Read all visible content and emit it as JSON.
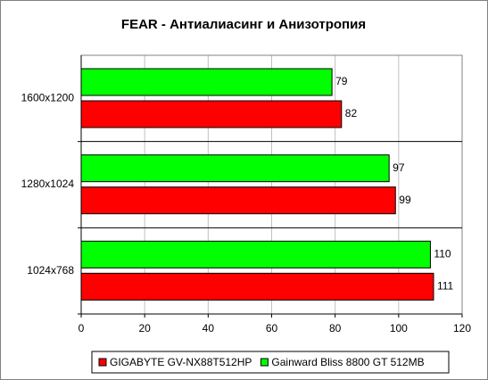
{
  "chart_data": {
    "type": "bar",
    "orientation": "horizontal",
    "title": "FEAR - Антиалиасинг и Анизотропия",
    "categories": [
      "1600x1200",
      "1280x1024",
      "1024x768"
    ],
    "series": [
      {
        "name": "GIGABYTE GV-NX88T512HP",
        "color": "#ff0000",
        "values": [
          82,
          99,
          111
        ]
      },
      {
        "name": "Gainward Bliss 8800 GT 512MB",
        "color": "#00ff00",
        "values": [
          79,
          97,
          110
        ]
      }
    ],
    "xlim": [
      0,
      120
    ],
    "xticks": [
      0,
      20,
      40,
      60,
      80,
      100,
      120
    ],
    "grid": true,
    "legend": "bottom"
  }
}
